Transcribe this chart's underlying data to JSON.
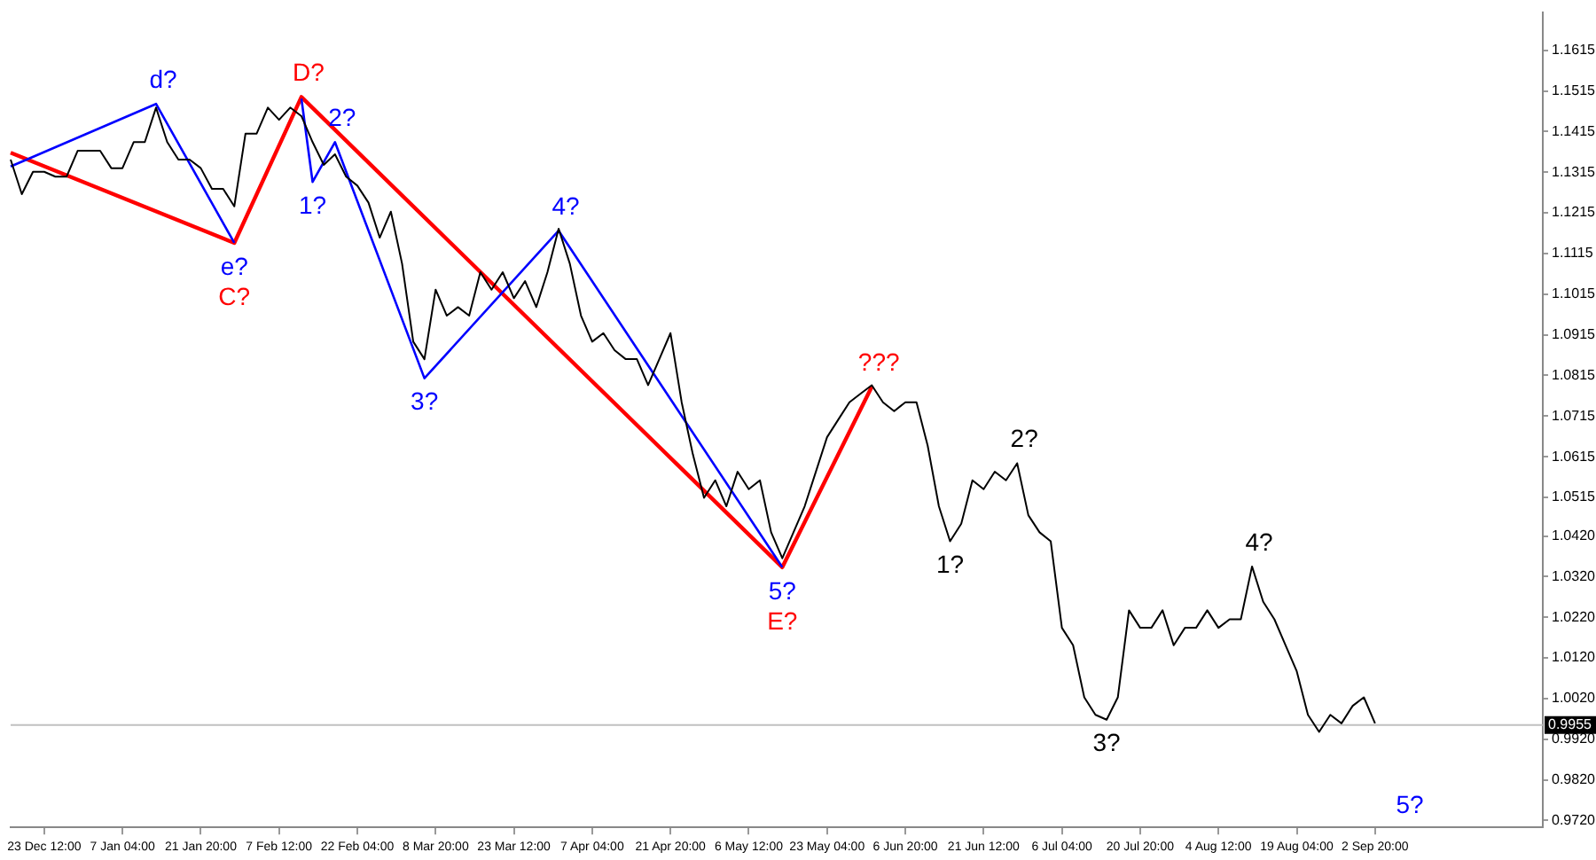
{
  "chart_data": {
    "type": "line",
    "marker": "none",
    "legend": false,
    "categories": [
      null,
      null,
      null,
      "23 Dec 12:00",
      null,
      null,
      null,
      null,
      null,
      null,
      "7 Jan 04:00",
      null,
      null,
      null,
      null,
      null,
      null,
      "21 Jan 20:00",
      null,
      null,
      null,
      null,
      null,
      null,
      "7 Feb 12:00",
      null,
      null,
      null,
      null,
      null,
      null,
      "22 Feb 04:00",
      null,
      null,
      null,
      null,
      null,
      null,
      "8 Mar 20:00",
      null,
      null,
      null,
      null,
      null,
      null,
      "23 Mar 12:00",
      null,
      null,
      null,
      null,
      null,
      null,
      "7 Apr 04:00",
      null,
      null,
      null,
      null,
      null,
      null,
      "21 Apr 20:00",
      null,
      null,
      null,
      null,
      null,
      null,
      "6 May 12:00",
      null,
      null,
      null,
      null,
      null,
      null,
      "23 May 04:00",
      null,
      null,
      null,
      null,
      null,
      null,
      "6 Jun 20:00",
      null,
      null,
      null,
      null,
      null,
      null,
      "21 Jun 12:00",
      null,
      null,
      null,
      null,
      null,
      null,
      "6 Jul 04:00",
      null,
      null,
      null,
      null,
      null,
      null,
      "20 Jul 20:00",
      null,
      null,
      null,
      null,
      null,
      null,
      "4 Aug 12:00",
      null,
      null,
      null,
      null,
      null,
      null,
      "19 Aug 04:00",
      null,
      null,
      null,
      null,
      null,
      null,
      "2 Sep 20:00",
      null,
      null,
      null,
      null,
      null,
      null,
      null,
      null,
      null,
      null,
      null,
      null,
      null,
      null,
      null
    ],
    "ylim": [
      0.9703,
      1.1709
    ],
    "yticks": [
      1.1615,
      1.1515,
      1.1415,
      1.1315,
      1.1215,
      1.1115,
      1.1015,
      1.0915,
      1.0815,
      1.0715,
      1.0615,
      1.0515,
      {
        "value": 1.042,
        "label": "1.0420"
      },
      {
        "value": 1.032,
        "label": "1.0320"
      },
      {
        "value": 1.022,
        "label": "1.0220"
      },
      {
        "value": 1.012,
        "label": "1.0120"
      },
      {
        "value": 1.002,
        "label": "1.0020"
      },
      {
        "value": 0.992,
        "label": "0.9920"
      },
      {
        "value": 0.982,
        "label": "0.9820"
      },
      {
        "value": 0.972,
        "label": "0.9720"
      }
    ],
    "ref_lines": [
      {
        "axis": "y",
        "value": 0.9955,
        "label": "0.9955",
        "color": "#c0c0c0"
      }
    ],
    "series": [
      {
        "color": "#000000",
        "values": [
          1.1346,
          1.1261,
          1.1316,
          1.1316,
          1.1304,
          1.1304,
          1.1368,
          1.1368,
          1.1368,
          1.1325,
          1.1325,
          1.1389,
          1.1389,
          1.1474,
          1.1389,
          1.1346,
          1.1346,
          1.1325,
          1.1274,
          1.1274,
          1.1231,
          1.141,
          1.141,
          1.1474,
          1.1444,
          1.1474,
          1.1453,
          1.1389,
          1.1333,
          1.1359,
          1.1304,
          1.1282,
          1.124,
          1.1154,
          1.1218,
          1.109,
          1.0898,
          1.0855,
          1.1026,
          1.0962,
          1.0983,
          1.0962,
          1.1069,
          1.1026,
          1.1069,
          1.1005,
          1.1047,
          1.0983,
          1.1069,
          1.1176,
          1.109,
          1.0962,
          1.0898,
          1.0919,
          1.0877,
          1.0855,
          1.0855,
          1.0791,
          1.0855,
          1.0919,
          1.0749,
          1.0621,
          1.0514,
          1.0557,
          1.0493,
          1.0578,
          1.0535,
          1.0557,
          1.0429,
          1.0365,
          1.0429,
          1.0493,
          1.0578,
          1.0663,
          1.0706,
          1.0749,
          1.077,
          1.0791,
          1.0749,
          1.0727,
          1.0749,
          1.0749,
          1.0642,
          1.0493,
          1.0407,
          1.045,
          1.0557,
          1.0535,
          1.0578,
          1.0557,
          1.0599,
          1.0471,
          1.0429,
          1.0407,
          1.0194,
          1.0151,
          1.0023,
          0.998,
          0.9968,
          1.0023,
          1.0237,
          1.0194,
          1.0194,
          1.0237,
          1.0151,
          1.0194,
          1.0194,
          1.0237,
          1.0194,
          1.0215,
          1.0215,
          1.0345,
          1.0258,
          1.0215,
          1.0151,
          1.0087,
          0.998,
          0.9938,
          0.998,
          0.9959,
          1.0002,
          1.0023,
          0.9959,
          null,
          null,
          null,
          null,
          null,
          null,
          null,
          null,
          null,
          null,
          null,
          null,
          null,
          null,
          null
        ]
      },
      {
        "color": "#0000ff",
        "values": [
          1.1329,
          null,
          null,
          null,
          null,
          null,
          null,
          null,
          null,
          null,
          null,
          null,
          null,
          1.1483,
          null,
          null,
          null,
          null,
          null,
          null,
          1.1141,
          null,
          null,
          null,
          null,
          null,
          null,
          null,
          null,
          null,
          null,
          null,
          null,
          null,
          null,
          null,
          null,
          null,
          null,
          null,
          null,
          null,
          null,
          null,
          null,
          null,
          null,
          null,
          null,
          null,
          null,
          null,
          null,
          null,
          null,
          null,
          null,
          null,
          null,
          null,
          null,
          null,
          null,
          null,
          null,
          null,
          null,
          null,
          null,
          null,
          null,
          null,
          null,
          null,
          null,
          null,
          null,
          null,
          null,
          null,
          null,
          null,
          null,
          null,
          null,
          null,
          null,
          null,
          null,
          null,
          null,
          null,
          null,
          null,
          null,
          null,
          null,
          null,
          null,
          null,
          null,
          null,
          null,
          null,
          null,
          null,
          null,
          null,
          null,
          null,
          null,
          null,
          null,
          null,
          null,
          null,
          null,
          null,
          null,
          null,
          null,
          null,
          null,
          null,
          null,
          null,
          null,
          null,
          null,
          null,
          null,
          null,
          null,
          null,
          null,
          null,
          null,
          null
        ]
      },
      {
        "color": "#0000ff",
        "values": [
          null,
          null,
          null,
          null,
          null,
          null,
          null,
          null,
          null,
          null,
          null,
          null,
          null,
          null,
          null,
          null,
          null,
          null,
          null,
          null,
          null,
          null,
          null,
          null,
          null,
          null,
          1.1496,
          1.1291,
          null,
          1.1389,
          null,
          null,
          null,
          null,
          null,
          null,
          null,
          1.0808,
          null,
          null,
          null,
          null,
          null,
          null,
          null,
          null,
          null,
          null,
          null,
          1.1171,
          null,
          null,
          null,
          null,
          null,
          null,
          null,
          null,
          null,
          null,
          null,
          null,
          null,
          null,
          null,
          null,
          null,
          null,
          null,
          1.0343,
          null,
          null,
          null,
          null,
          null,
          null,
          null,
          null,
          null,
          null,
          null,
          null,
          null,
          null,
          null,
          null,
          null,
          null,
          null,
          null,
          null,
          null,
          null,
          null,
          null,
          null,
          null,
          null,
          null,
          null,
          null,
          null,
          null,
          null,
          null,
          null,
          null,
          null,
          null,
          null,
          null,
          null,
          null,
          null,
          null,
          null,
          null,
          null,
          null,
          null,
          null,
          null,
          null,
          null,
          null,
          null,
          null,
          null,
          null,
          null,
          null,
          null,
          null,
          null,
          null,
          null,
          null,
          null
        ]
      },
      {
        "color": "#ff0000",
        "values": [
          1.1363,
          null,
          null,
          null,
          null,
          null,
          null,
          null,
          null,
          null,
          null,
          null,
          null,
          null,
          null,
          null,
          null,
          null,
          null,
          null,
          1.1141,
          null,
          null,
          null,
          null,
          null,
          1.15,
          null,
          null,
          null,
          null,
          null,
          null,
          null,
          null,
          null,
          null,
          null,
          null,
          null,
          null,
          null,
          null,
          null,
          null,
          null,
          null,
          null,
          null,
          null,
          null,
          null,
          null,
          null,
          null,
          null,
          null,
          null,
          null,
          null,
          null,
          null,
          null,
          null,
          null,
          null,
          null,
          null,
          null,
          1.0343,
          null,
          null,
          null,
          null,
          null,
          null,
          null,
          1.0787,
          null,
          null,
          null,
          null,
          null,
          null,
          null,
          null,
          null,
          null,
          null,
          null,
          null,
          null,
          null,
          null,
          null,
          null,
          null,
          null,
          null,
          null,
          null,
          null,
          null,
          null,
          null,
          null,
          null,
          null,
          null,
          null,
          null,
          null,
          null,
          null,
          null,
          null,
          null,
          null,
          null,
          null,
          null,
          null,
          null,
          null,
          null,
          null,
          null,
          null,
          null,
          null,
          null,
          null,
          null,
          null,
          null,
          null,
          null,
          null
        ]
      }
    ],
    "annotations": [
      {
        "text": "d?",
        "y": 1.1483
      },
      {
        "text": "e?",
        "y": 1.1141
      },
      {
        "text": "C?",
        "y": 1.1141
      },
      {
        "text": "D?",
        "y": 1.15
      },
      {
        "text": "1?",
        "y": 1.1291
      },
      {
        "text": "2?",
        "y": 1.1389
      },
      {
        "text": "3?",
        "y": 1.0808
      },
      {
        "text": "4?",
        "y": 1.1171
      },
      {
        "text": "5?",
        "y": 1.0343
      },
      {
        "text": "E?",
        "y": 1.0343
      },
      {
        "text": "???",
        "y": 1.0787
      },
      {
        "text": "1?",
        "y": 1.0407
      },
      {
        "text": "2?",
        "y": 1.0599
      },
      {
        "text": "3?",
        "y": 0.9968
      },
      {
        "text": "4?",
        "y": 1.0345
      },
      "5?"
    ]
  }
}
